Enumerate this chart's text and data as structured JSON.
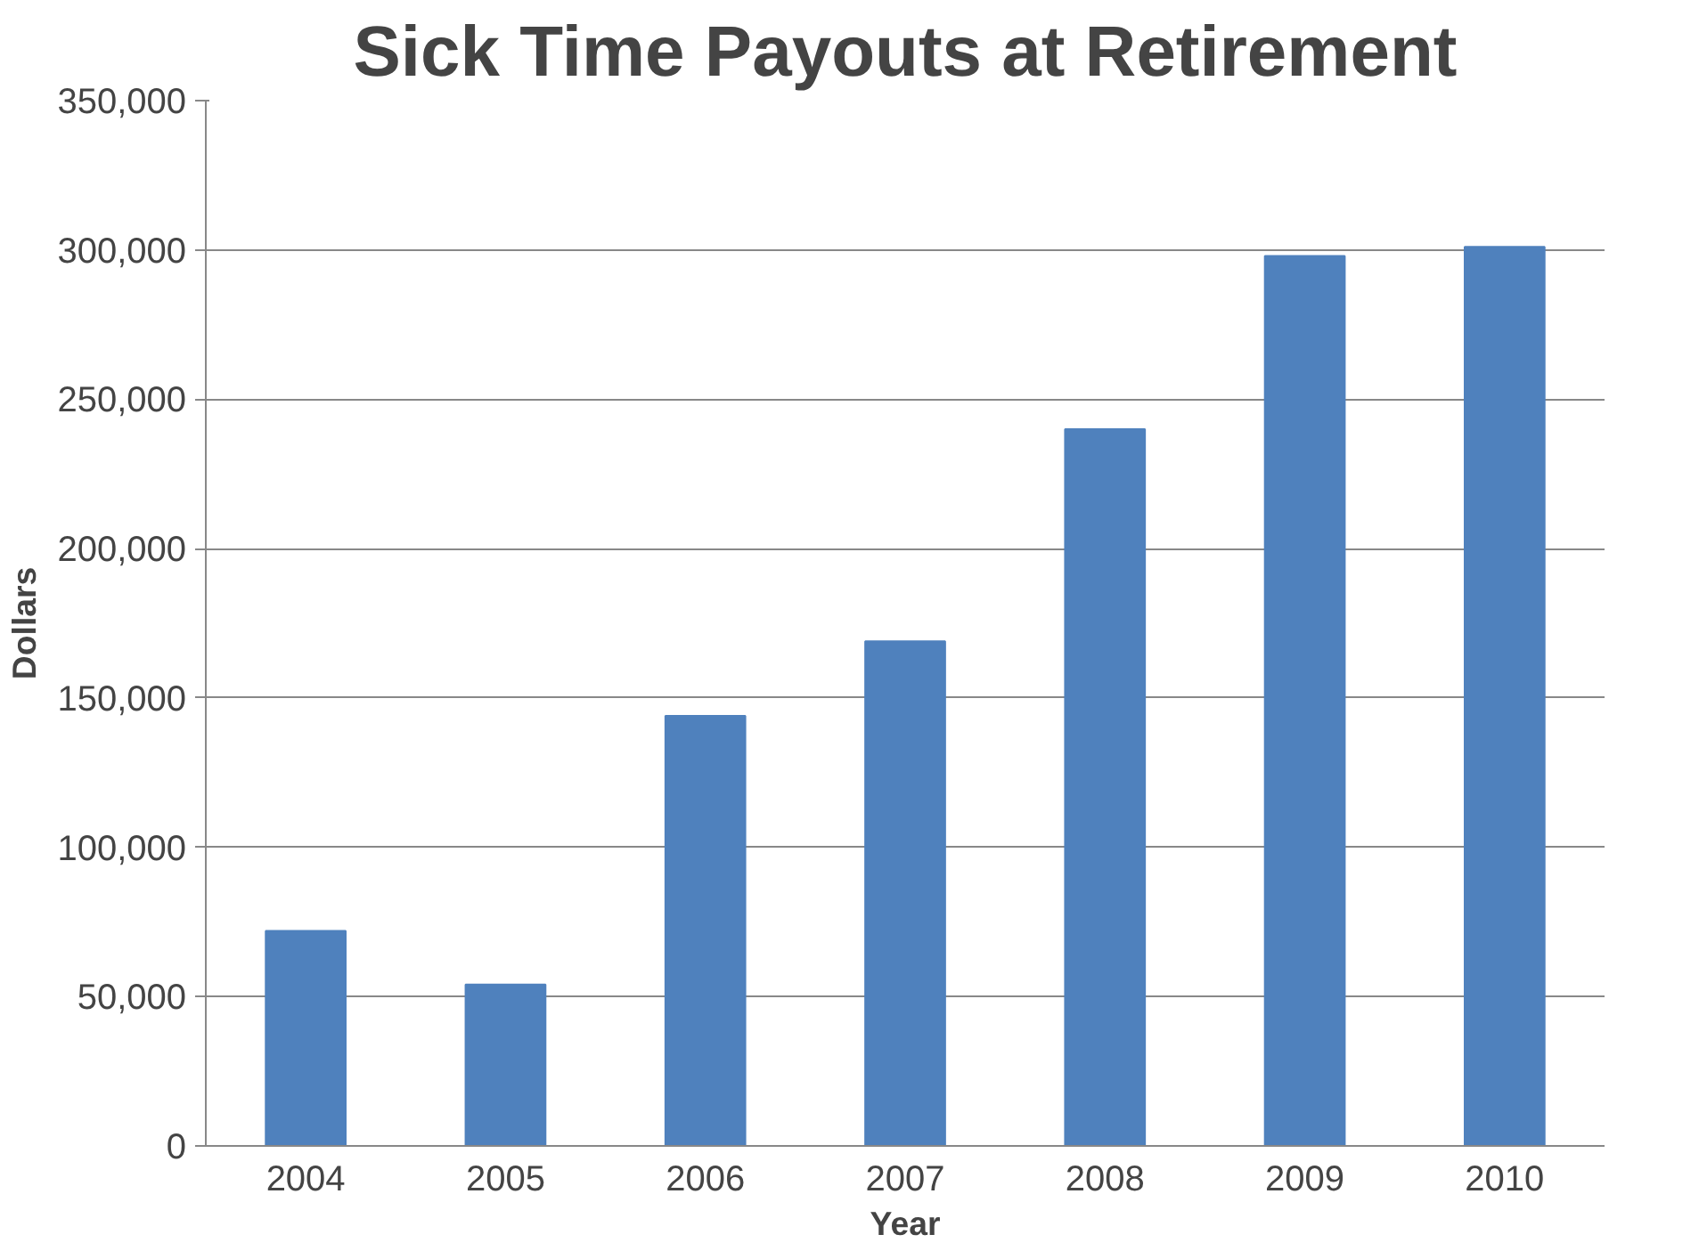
{
  "chart_data": {
    "type": "bar",
    "title": "Sick Time Payouts at Retirement",
    "xlabel": "Year",
    "ylabel": "Dollars",
    "categories": [
      "2004",
      "2005",
      "2006",
      "2007",
      "2008",
      "2009",
      "2010"
    ],
    "values": [
      72000,
      54000,
      144000,
      169000,
      240000,
      298000,
      301000
    ],
    "color": "#4f81bd",
    "ylim": [
      0,
      350000
    ],
    "yticks": [
      {
        "value": 0,
        "label": "0"
      },
      {
        "value": 50000,
        "label": "50,000"
      },
      {
        "value": 100000,
        "label": "100,000"
      },
      {
        "value": 150000,
        "label": "150,000"
      },
      {
        "value": 200000,
        "label": "200,000"
      },
      {
        "value": 250000,
        "label": "250,000"
      },
      {
        "value": 300000,
        "label": "300,000"
      },
      {
        "value": 350000,
        "label": "350,000"
      }
    ],
    "grid": "y"
  }
}
